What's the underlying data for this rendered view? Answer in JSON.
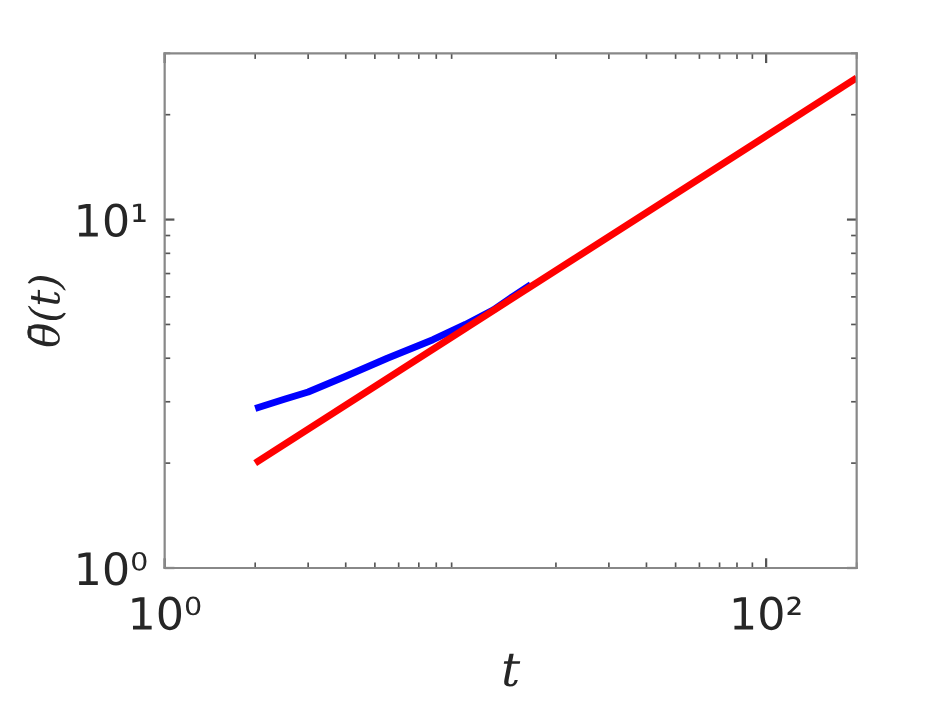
{
  "chart_data": {
    "type": "line",
    "xlabel": "t",
    "ylabel": "θ̄(t)",
    "log": "xy",
    "xlim": [
      1,
      200
    ],
    "ylim": [
      1,
      30
    ],
    "xticks": [
      {
        "value": 1,
        "label": "10⁰"
      },
      {
        "value": 100,
        "label": "10²"
      }
    ],
    "yticks": [
      {
        "value": 1,
        "label": "10⁰"
      },
      {
        "value": 10,
        "label": "10¹"
      }
    ],
    "grid": false,
    "legend": false,
    "marker": "none",
    "line_style": "solid",
    "series": [
      {
        "color": "#0000ff",
        "x": [
          2.0,
          2.5,
          3.0,
          4.0,
          5.5,
          7.8,
          10.0,
          12.4,
          14.4,
          16.5
        ],
        "values": [
          2.87,
          3.05,
          3.2,
          3.55,
          4.0,
          4.52,
          5.0,
          5.51,
          6.02,
          6.5
        ]
      },
      {
        "color": "#ff0000",
        "x": [
          2.0,
          200
        ],
        "values": [
          2.0,
          25.5
        ]
      }
    ]
  }
}
